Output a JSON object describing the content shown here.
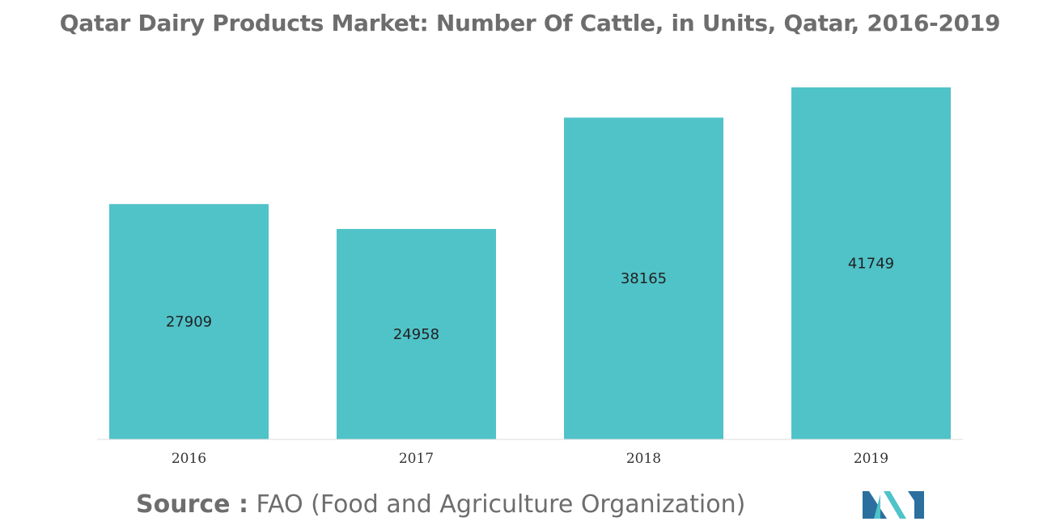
{
  "title": "Qatar Dairy Products Market: Number Of Cattle, in Units, Qatar, 2016-2019",
  "source": {
    "label": "Source :",
    "text": "FAO (Food and Agriculture Organization)"
  },
  "colors": {
    "bar": "#50c3c9",
    "title": "#6d6d6d",
    "logo_dark": "#2b6f9e",
    "logo_light": "#4fc3c9"
  },
  "logo": {
    "icon": "mordor-intelligence-logo-icon"
  },
  "chart_data": {
    "type": "bar",
    "categories": [
      "2016",
      "2017",
      "2018",
      "2019"
    ],
    "values": [
      27909,
      24958,
      38165,
      41749
    ],
    "data_labels": [
      "27909",
      "24958",
      "38165",
      "41749"
    ],
    "title": "Qatar Dairy Products Market: Number Of Cattle, in Units, Qatar, 2016-2019",
    "xlabel": "",
    "ylabel": "",
    "ylim": [
      0,
      41749
    ],
    "grid": false,
    "legend": "none"
  }
}
